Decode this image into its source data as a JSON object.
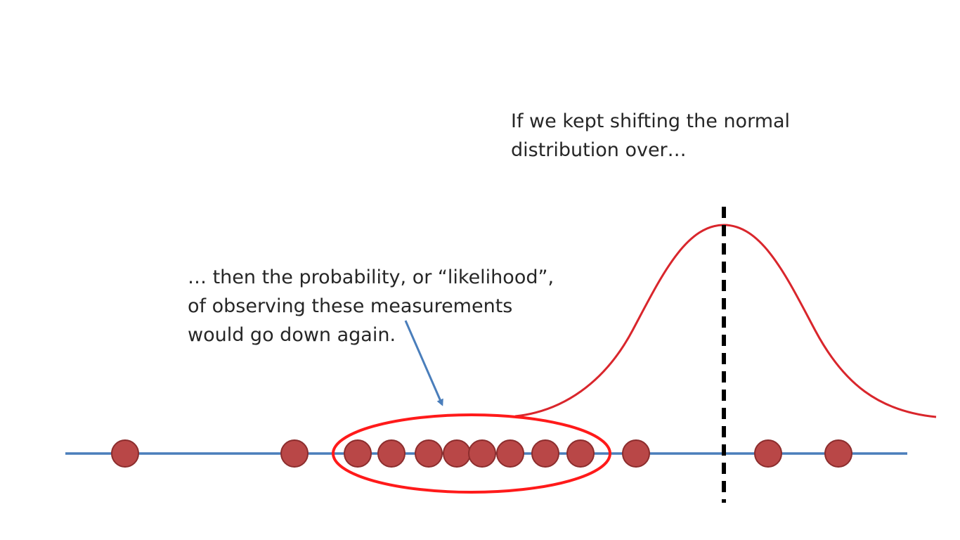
{
  "captions": {
    "top": [
      "If we kept shifting the normal",
      "distribution over…"
    ],
    "left": [
      "… then the probability, or “likelihood”,",
      "of observing these measurements",
      "would go down again."
    ]
  },
  "colors": {
    "axis": "#4a7ebb",
    "curve": "#d9262c",
    "points_fill": "#b94747",
    "points_stroke": "#8c2d2d",
    "ellipse": "#ff1a1a",
    "arrow": "#4a7ebb",
    "mean_line": "#000000"
  }
}
